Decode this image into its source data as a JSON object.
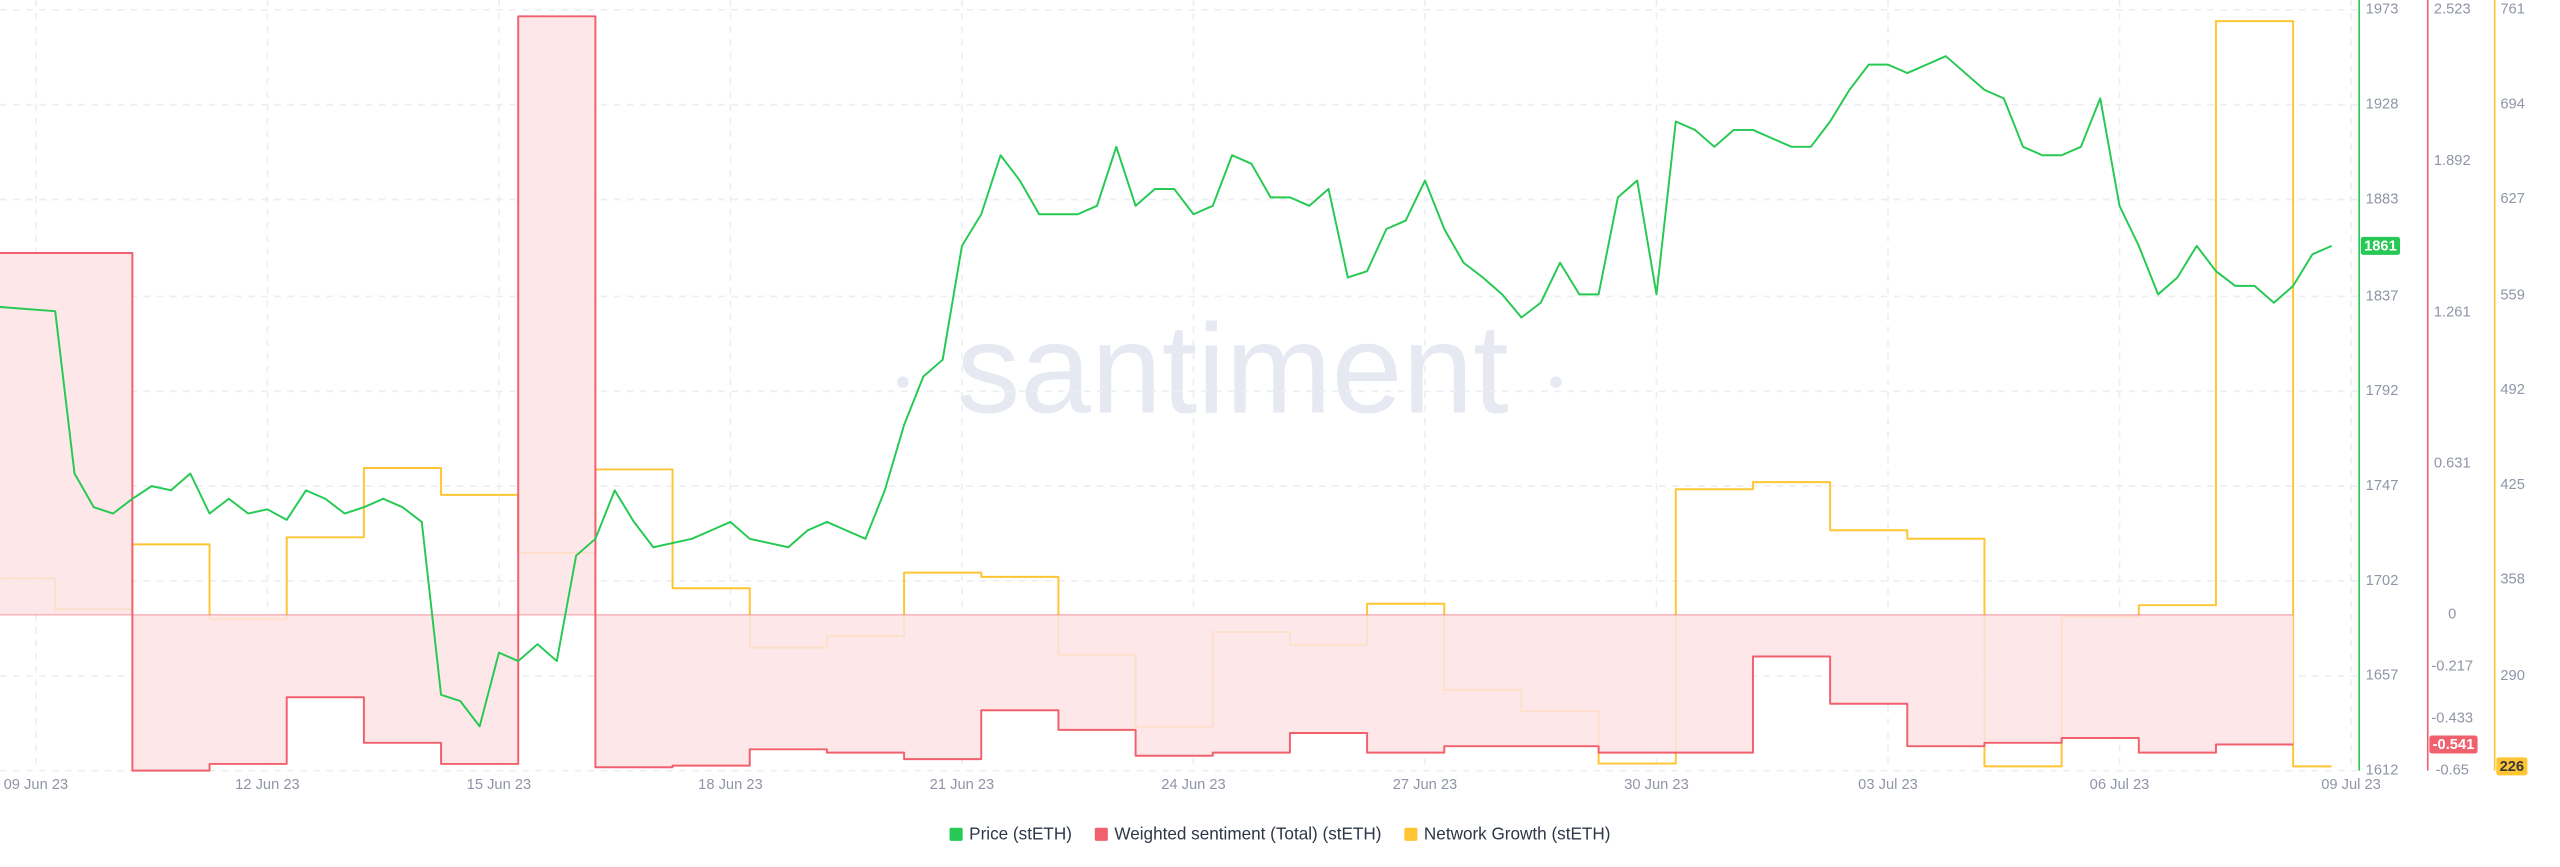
{
  "chart_data": {
    "type": "line",
    "watermark": "santiment",
    "legend": "bottom",
    "grid": true,
    "categories": [
      "09 Jun 23",
      null,
      null,
      null,
      null,
      null,
      null,
      null,
      null,
      null,
      null,
      null,
      "12 Jun 23",
      null,
      null,
      null,
      null,
      null,
      null,
      null,
      null,
      null,
      null,
      null,
      "15 Jun 23",
      null,
      null,
      null,
      null,
      null,
      null,
      null,
      null,
      null,
      null,
      null,
      "18 Jun 23",
      null,
      null,
      null,
      null,
      null,
      null,
      null,
      null,
      null,
      null,
      null,
      "21 Jun 23",
      null,
      null,
      null,
      null,
      null,
      null,
      null,
      null,
      null,
      null,
      null,
      "24 Jun 23",
      null,
      null,
      null,
      null,
      null,
      null,
      null,
      null,
      null,
      null,
      null,
      "27 Jun 23",
      null,
      null,
      null,
      null,
      null,
      null,
      null,
      null,
      null,
      null,
      null,
      "30 Jun 23",
      null,
      null,
      null,
      null,
      null,
      null,
      null,
      null,
      null,
      null,
      null,
      "03 Jul 23",
      null,
      null,
      null,
      null,
      null,
      null,
      null,
      null,
      null,
      null,
      null,
      "06 Jul 23",
      null,
      null,
      null,
      null,
      null,
      null,
      null,
      null,
      null,
      null,
      null,
      "09 Jul 23"
    ],
    "series": [
      {
        "name": "Price (stETH)",
        "color": "#26c953",
        "axis": "y",
        "values": [
          1832,
          1830,
          1753,
          1737,
          1734,
          1741,
          1747,
          1745,
          1753,
          1734,
          1741,
          1734,
          1736,
          1731,
          1745,
          1741,
          1734,
          1737,
          1741,
          1737,
          1730,
          1648,
          1645,
          1633,
          1668,
          1664,
          1672,
          1664,
          1714,
          1722,
          1745,
          1730,
          1718,
          1720,
          1722,
          1726,
          1730,
          1722,
          1720,
          1718,
          1726,
          1730,
          1726,
          1722,
          1745,
          1776,
          1799,
          1807,
          1861,
          1876,
          1904,
          1892,
          1876,
          1876,
          1876,
          1880,
          1908,
          1880,
          1888,
          1888,
          1876,
          1880,
          1904,
          1900,
          1884,
          1884,
          1880,
          1888,
          1846,
          1849,
          1869,
          1873,
          1892,
          1869,
          1853,
          1846,
          1838,
          1827,
          1834,
          1853,
          1838,
          1838,
          1884,
          1892,
          1838,
          1920,
          1916,
          1908,
          1916,
          1916,
          1912,
          1908,
          1908,
          1920,
          1935,
          1947,
          1947,
          1943,
          1947,
          1951,
          1943,
          1935,
          1931,
          1908,
          1904,
          1904,
          1908,
          1931,
          1880,
          1861,
          1838,
          1846,
          1861,
          1849,
          1842,
          1842,
          1834,
          1842,
          1857,
          1861,
          null
        ]
      },
      {
        "name": "Weighted sentiment (Total) (stETH)",
        "color": "#f0616d",
        "axis": "y2",
        "step": true,
        "fill": "#fde3e5",
        "values": [
          1.509,
          1.509,
          1.509,
          1.509,
          1.509,
          -0.65,
          -0.65,
          -0.65,
          -0.65,
          -0.622,
          -0.622,
          -0.622,
          -0.622,
          -0.344,
          -0.344,
          -0.344,
          -0.344,
          -0.534,
          -0.534,
          -0.534,
          -0.534,
          -0.622,
          -0.622,
          -0.622,
          -0.622,
          2.496,
          2.496,
          2.496,
          2.496,
          -0.636,
          -0.636,
          -0.636,
          -0.636,
          -0.629,
          -0.629,
          -0.629,
          -0.629,
          -0.561,
          -0.561,
          -0.561,
          -0.561,
          -0.575,
          -0.575,
          -0.575,
          -0.575,
          -0.602,
          -0.602,
          -0.602,
          -0.602,
          -0.398,
          -0.398,
          -0.398,
          -0.398,
          -0.48,
          -0.48,
          -0.48,
          -0.48,
          -0.588,
          -0.588,
          -0.588,
          -0.588,
          -0.575,
          -0.575,
          -0.575,
          -0.575,
          -0.493,
          -0.493,
          -0.493,
          -0.493,
          -0.575,
          -0.575,
          -0.575,
          -0.575,
          -0.548,
          -0.548,
          -0.548,
          -0.548,
          -0.548,
          -0.548,
          -0.548,
          -0.548,
          -0.575,
          -0.575,
          -0.575,
          -0.575,
          -0.575,
          -0.575,
          -0.575,
          -0.575,
          -0.174,
          -0.174,
          -0.174,
          -0.174,
          -0.371,
          -0.371,
          -0.371,
          -0.371,
          -0.548,
          -0.548,
          -0.548,
          -0.548,
          -0.534,
          -0.534,
          -0.534,
          -0.534,
          -0.514,
          -0.514,
          -0.514,
          -0.514,
          -0.575,
          -0.575,
          -0.575,
          -0.575,
          -0.541,
          -0.541,
          -0.541,
          -0.541,
          -0.541,
          null,
          null,
          null
        ]
      },
      {
        "name": "Network Growth (stETH)",
        "color": "#ffc532",
        "axis": "y3",
        "step": true,
        "values": [
          359,
          337,
          337,
          337,
          337,
          383,
          383,
          383,
          383,
          330,
          330,
          330,
          330,
          388,
          388,
          388,
          388,
          437,
          437,
          437,
          437,
          418,
          418,
          418,
          418,
          377,
          377,
          377,
          377,
          436,
          436,
          436,
          436,
          352,
          352,
          352,
          352,
          310,
          310,
          310,
          310,
          318,
          318,
          318,
          318,
          363,
          363,
          363,
          363,
          360,
          360,
          360,
          360,
          305,
          305,
          305,
          305,
          254,
          254,
          254,
          254,
          321,
          321,
          321,
          321,
          312,
          312,
          312,
          312,
          341,
          341,
          341,
          341,
          280,
          280,
          280,
          280,
          265,
          265,
          265,
          265,
          228,
          228,
          228,
          228,
          422,
          422,
          422,
          422,
          427,
          427,
          427,
          427,
          393,
          393,
          393,
          393,
          387,
          387,
          387,
          387,
          226,
          226,
          226,
          226,
          332,
          332,
          332,
          332,
          340,
          340,
          340,
          340,
          753,
          753,
          753,
          753,
          226,
          226,
          226,
          null
        ]
      }
    ],
    "ylim": [
      1612,
      1973
    ],
    "yticks": [
      1973,
      1928,
      1883,
      1837,
      1792,
      1747,
      1702,
      1657,
      1612
    ],
    "y2lim": [
      -0.65,
      2.523
    ],
    "y2ticks": [
      2.523,
      1.892,
      1.261,
      0.631,
      0,
      -0.217,
      -0.433,
      -0.65
    ],
    "y3lim": [
      223,
      761
    ],
    "y3ticks": [
      761,
      694,
      627,
      559,
      492,
      425,
      358,
      290
    ]
  }
}
